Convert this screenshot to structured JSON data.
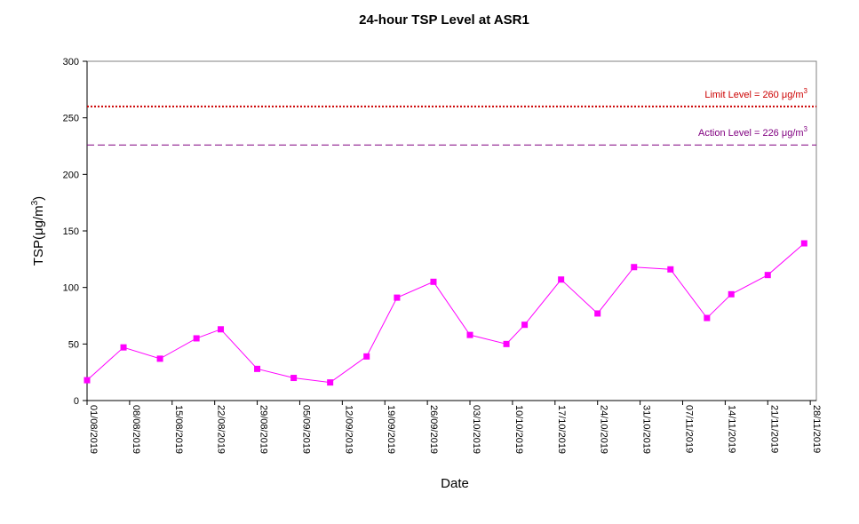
{
  "chart_data": {
    "type": "line",
    "title": "24-hour TSP Level at ASR1",
    "xlabel": "Date",
    "ylabel": "TSP(μg/m³)",
    "ylim": [
      0,
      300
    ],
    "yticks": [
      0,
      50,
      100,
      150,
      200,
      250,
      300
    ],
    "x_range": [
      "2019-08-01",
      "2019-11-29"
    ],
    "x_tick_labels": [
      "01/08/2019",
      "08/08/2019",
      "15/08/2019",
      "22/08/2019",
      "29/08/2019",
      "05/09/2019",
      "12/09/2019",
      "19/09/2019",
      "26/09/2019",
      "03/10/2019",
      "10/10/2019",
      "17/10/2019",
      "24/10/2019",
      "31/10/2019",
      "07/11/2019",
      "14/11/2019",
      "21/11/2019",
      "28/11/2019"
    ],
    "grid": false,
    "series": [
      {
        "color": "#ff00ff",
        "points": [
          {
            "x": "2019-08-01",
            "y": 18
          },
          {
            "x": "2019-08-07",
            "y": 47
          },
          {
            "x": "2019-08-13",
            "y": 37
          },
          {
            "x": "2019-08-19",
            "y": 55
          },
          {
            "x": "2019-08-23",
            "y": 63
          },
          {
            "x": "2019-08-29",
            "y": 28
          },
          {
            "x": "2019-09-04",
            "y": 20
          },
          {
            "x": "2019-09-10",
            "y": 16
          },
          {
            "x": "2019-09-16",
            "y": 39
          },
          {
            "x": "2019-09-21",
            "y": 91
          },
          {
            "x": "2019-09-27",
            "y": 105
          },
          {
            "x": "2019-10-03",
            "y": 58
          },
          {
            "x": "2019-10-09",
            "y": 50
          },
          {
            "x": "2019-10-12",
            "y": 67
          },
          {
            "x": "2019-10-18",
            "y": 107
          },
          {
            "x": "2019-10-24",
            "y": 77
          },
          {
            "x": "2019-10-30",
            "y": 118
          },
          {
            "x": "2019-11-05",
            "y": 116
          },
          {
            "x": "2019-11-11",
            "y": 73
          },
          {
            "x": "2019-11-15",
            "y": 94
          },
          {
            "x": "2019-11-21",
            "y": 111
          },
          {
            "x": "2019-11-27",
            "y": 139
          }
        ]
      }
    ],
    "reference_lines": [
      {
        "label_prefix": "Limit Level  = 260 ",
        "label_unit": "μg/m",
        "label_exp": "3",
        "value": 260,
        "color": "#cc0000",
        "style": "dotted"
      },
      {
        "label_prefix": "Action Level  = 226 ",
        "label_unit": "μg/m",
        "label_exp": "3",
        "value": 226,
        "color": "#800080",
        "style": "dashed"
      }
    ],
    "colors": {
      "series": "#ff00ff",
      "limit": "#cc0000",
      "action": "#800080",
      "axis": "#000000"
    }
  }
}
